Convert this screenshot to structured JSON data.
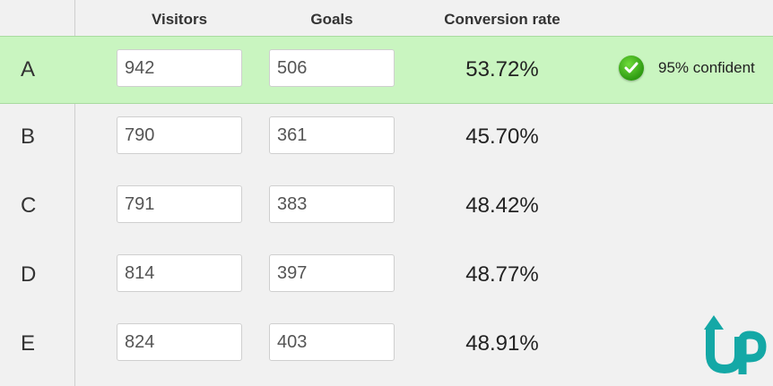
{
  "header": {
    "visitors_label": "Visitors",
    "goals_label": "Goals",
    "conversion_label": "Conversion rate"
  },
  "rows": [
    {
      "label": "A",
      "visitors": "942",
      "goals": "506",
      "rate": "53.72%",
      "confidence": "95% confident",
      "winner": true
    },
    {
      "label": "B",
      "visitors": "790",
      "goals": "361",
      "rate": "45.70%"
    },
    {
      "label": "C",
      "visitors": "791",
      "goals": "383",
      "rate": "48.42%"
    },
    {
      "label": "D",
      "visitors": "814",
      "goals": "397",
      "rate": "48.77%"
    },
    {
      "label": "E",
      "visitors": "824",
      "goals": "403",
      "rate": "48.91%"
    }
  ],
  "colors": {
    "winner_background": "#c9f5c0",
    "check_green": "#2e9a12",
    "logo_teal": "#14a8a6"
  },
  "icons": {
    "confidence": "check-circle-icon",
    "brand": "up-arrow-logo-icon"
  }
}
